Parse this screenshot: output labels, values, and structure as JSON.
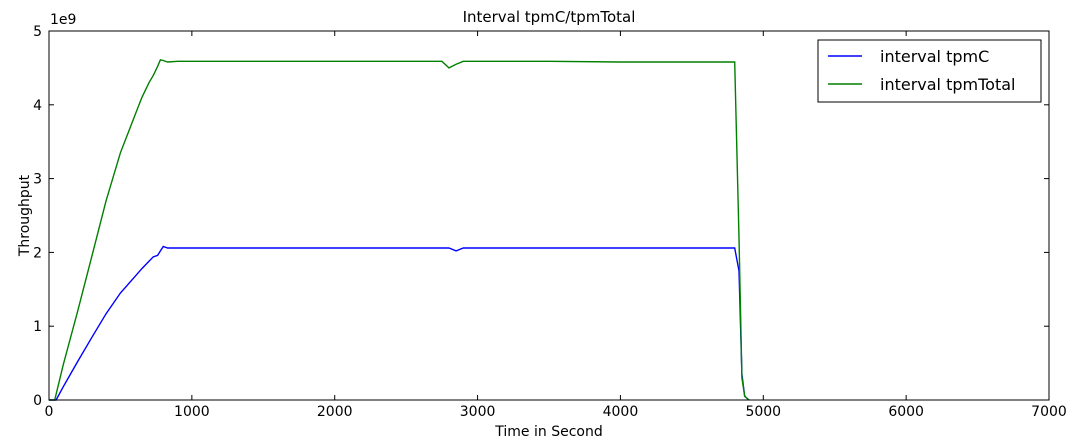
{
  "chart_data": {
    "type": "line",
    "title": "Interval tpmC/tpmTotal",
    "xlabel": "Time in Second",
    "ylabel": "Throughput",
    "y_multiplier_label": "1e9",
    "xlim": [
      0,
      7000
    ],
    "ylim": [
      0,
      5
    ],
    "x_ticks": [
      0,
      1000,
      2000,
      3000,
      4000,
      5000,
      6000,
      7000
    ],
    "y_ticks": [
      0,
      1,
      2,
      3,
      4,
      5
    ],
    "grid": false,
    "legend_position": "top-right",
    "series": [
      {
        "name": "interval tpmC",
        "color": "#0000ff",
        "x": [
          0,
          50,
          100,
          200,
          300,
          400,
          500,
          600,
          650,
          700,
          730,
          760,
          780,
          800,
          830,
          900,
          1000,
          1500,
          2000,
          2500,
          2800,
          2850,
          2900,
          3000,
          3500,
          4000,
          4500,
          4790,
          4800,
          4830,
          4850,
          4870,
          4900
        ],
        "values": [
          0,
          0.0,
          0.18,
          0.52,
          0.85,
          1.17,
          1.45,
          1.67,
          1.78,
          1.88,
          1.94,
          1.96,
          2.02,
          2.08,
          2.06,
          2.06,
          2.06,
          2.06,
          2.06,
          2.06,
          2.06,
          2.02,
          2.06,
          2.06,
          2.06,
          2.06,
          2.06,
          2.06,
          2.06,
          1.75,
          0.35,
          0.05,
          0
        ]
      },
      {
        "name": "interval tpmTotal",
        "color": "#008000",
        "x": [
          0,
          40,
          100,
          200,
          300,
          400,
          500,
          600,
          650,
          700,
          730,
          760,
          780,
          800,
          830,
          900,
          1000,
          1500,
          2000,
          2500,
          2750,
          2800,
          2850,
          2900,
          3000,
          3500,
          4000,
          4500,
          4790,
          4800,
          4830,
          4850,
          4870,
          4900
        ],
        "values": [
          0,
          0.0,
          0.48,
          1.2,
          1.95,
          2.7,
          3.35,
          3.85,
          4.1,
          4.3,
          4.4,
          4.52,
          4.61,
          4.6,
          4.58,
          4.59,
          4.59,
          4.59,
          4.59,
          4.59,
          4.59,
          4.5,
          4.55,
          4.59,
          4.59,
          4.59,
          4.58,
          4.58,
          4.58,
          4.58,
          2.2,
          0.3,
          0.05,
          0
        ]
      }
    ]
  }
}
